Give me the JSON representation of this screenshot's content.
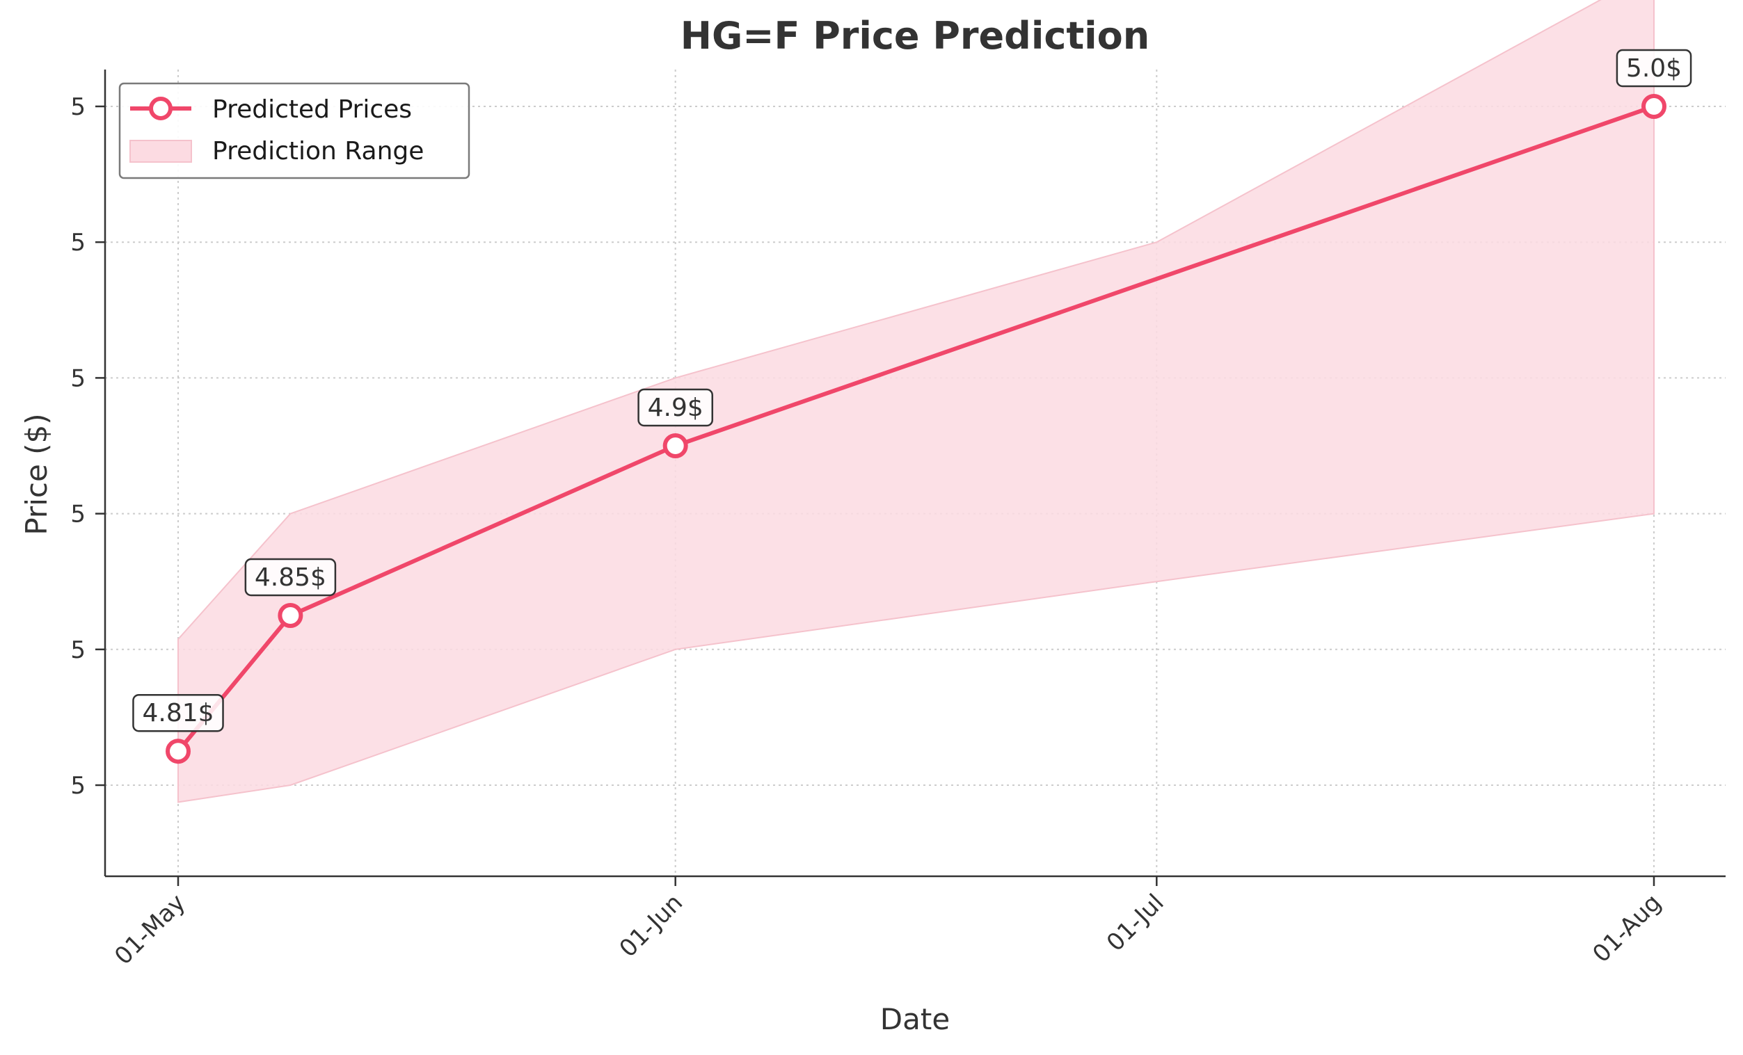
{
  "chart_data": {
    "type": "line",
    "title": "HG=F Price Prediction",
    "xlabel": "Date",
    "ylabel": "Price ($)",
    "x_ticks": [
      {
        "label": "01-May",
        "date": "2025-05-01"
      },
      {
        "label": "01-Jun",
        "date": "2025-06-01"
      },
      {
        "label": "01-Jul",
        "date": "2025-07-01"
      },
      {
        "label": "01-Aug",
        "date": "2025-08-01"
      }
    ],
    "xlim": [
      "2025-04-26",
      "2025-08-01"
    ],
    "y_ticks": [
      {
        "label": "5",
        "value": 4.8
      },
      {
        "label": "5",
        "value": 4.84
      },
      {
        "label": "5",
        "value": 4.88
      },
      {
        "label": "5",
        "value": 4.92
      },
      {
        "label": "5",
        "value": 4.96
      },
      {
        "label": "5",
        "value": 5.0
      }
    ],
    "ylim": [
      4.773,
      5.01
    ],
    "grid": true,
    "legend_position": "top-left",
    "series": [
      {
        "name": "Predicted Prices",
        "color": "#f0476a",
        "points": [
          {
            "date": "2025-05-01",
            "value": 4.81,
            "label": "4.81$"
          },
          {
            "date": "2025-05-08",
            "value": 4.85,
            "label": "4.85$"
          },
          {
            "date": "2025-06-01",
            "value": 4.9,
            "label": "4.9$"
          },
          {
            "date": "2025-08-01",
            "value": 5.0,
            "label": "5.0$"
          }
        ]
      }
    ],
    "band": {
      "name": "Prediction Range",
      "color": "#fcdbe2",
      "edge_color": "#f5c2cc",
      "points": [
        {
          "date": "2025-05-01",
          "low": 4.795,
          "high": 4.843
        },
        {
          "date": "2025-05-08",
          "low": 4.8,
          "high": 4.88
        },
        {
          "date": "2025-06-01",
          "low": 4.84,
          "high": 4.92
        },
        {
          "date": "2025-07-01",
          "low": 4.86,
          "high": 4.96
        },
        {
          "date": "2025-08-01",
          "low": 4.88,
          "high": 5.04
        }
      ]
    }
  }
}
